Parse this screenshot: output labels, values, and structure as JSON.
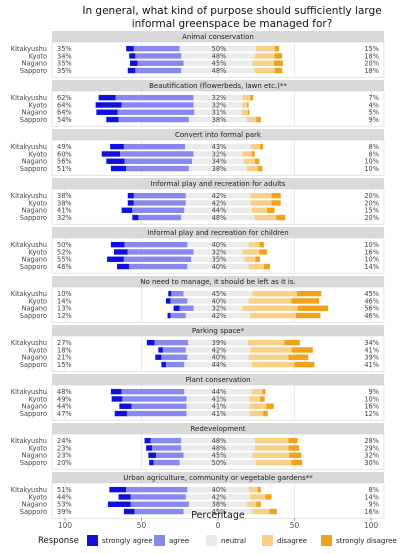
{
  "chart_data": {
    "type": "bar",
    "subtype": "diverging-stacked-likert",
    "title": "In general, what kind of purpose should sufficiently large informal greenspace be managed for?",
    "title_lines": [
      "In general, what kind of purpose should sufficiently large",
      "informal greenspace be managed for?"
    ],
    "xlabel": "Percentage",
    "x_ticks": [
      "100",
      "50",
      "0",
      "50",
      "100"
    ],
    "xlim": [
      -100,
      100
    ],
    "grid": true,
    "legend_position": "bottom",
    "legend": {
      "title": "Response",
      "items": [
        "strongly agree",
        "agree",
        "neutral",
        "disagree",
        "strongly disagree"
      ]
    },
    "colors": {
      "strongly_agree": "#1010dd",
      "agree": "#8888ee",
      "neutral": "#ebebeb",
      "disagree": "#f8d088",
      "strongly_disagree": "#f2a21a",
      "strip_background": "#d9d9d9",
      "panel_background": "#ffffff",
      "grid": "#dddddd"
    },
    "cities": [
      "Kitakyushu",
      "Kyoto",
      "Nagano",
      "Sapporo"
    ],
    "panels": [
      {
        "label": "Animal conservation",
        "rows": [
          {
            "city": "Kitakyushu",
            "agree_total": "35%",
            "neutral": "50%",
            "disagree_total": "15%",
            "values": [
              5,
              30,
              50,
              12,
              3
            ]
          },
          {
            "city": "Kyoto",
            "agree_total": "34%",
            "neutral": "48%",
            "disagree_total": "18%",
            "values": [
              4,
              30,
              48,
              13,
              5
            ]
          },
          {
            "city": "Nagano",
            "agree_total": "35%",
            "neutral": "45%",
            "disagree_total": "20%",
            "values": [
              5,
              30,
              45,
              14,
              6
            ]
          },
          {
            "city": "Sapporo",
            "agree_total": "35%",
            "neutral": "48%",
            "disagree_total": "18%",
            "values": [
              5,
              30,
              48,
              13,
              5
            ]
          }
        ]
      },
      {
        "label": "Beautification (flowerbeds, lawn etc.)**",
        "rows": [
          {
            "city": "Kitakyushu",
            "agree_total": "62%",
            "neutral": "32%",
            "disagree_total": "7%",
            "values": [
              11,
              51,
              32,
              5,
              2
            ]
          },
          {
            "city": "Kyoto",
            "agree_total": "64%",
            "neutral": "32%",
            "disagree_total": "4%",
            "values": [
              17,
              47,
              32,
              3,
              1
            ]
          },
          {
            "city": "Nagano",
            "agree_total": "64%",
            "neutral": "31%",
            "disagree_total": "5%",
            "values": [
              14,
              50,
              31,
              4,
              1
            ]
          },
          {
            "city": "Sapporo",
            "agree_total": "54%",
            "neutral": "38%",
            "disagree_total": "9%",
            "values": [
              8,
              46,
              38,
              6,
              3
            ]
          }
        ]
      },
      {
        "label": "Convert into formal park",
        "rows": [
          {
            "city": "Kitakyushu",
            "agree_total": "49%",
            "neutral": "43%",
            "disagree_total": "8%",
            "values": [
              9,
              40,
              43,
              6,
              2
            ]
          },
          {
            "city": "Kyoto",
            "agree_total": "60%",
            "neutral": "32%",
            "disagree_total": "8%",
            "values": [
              12,
              48,
              32,
              6,
              2
            ]
          },
          {
            "city": "Nagano",
            "agree_total": "56%",
            "neutral": "34%",
            "disagree_total": "10%",
            "values": [
              12,
              44,
              34,
              7,
              3
            ]
          },
          {
            "city": "Sapporo",
            "agree_total": "51%",
            "neutral": "38%",
            "disagree_total": "10%",
            "values": [
              10,
              41,
              38,
              7,
              3
            ]
          }
        ]
      },
      {
        "label": "Informal play and recreation for adults",
        "rows": [
          {
            "city": "Kitakyushu",
            "agree_total": "38%",
            "neutral": "42%",
            "disagree_total": "20%",
            "values": [
              4,
              34,
              42,
              14,
              6
            ]
          },
          {
            "city": "Kyoto",
            "agree_total": "38%",
            "neutral": "42%",
            "disagree_total": "20%",
            "values": [
              4,
              34,
              42,
              14,
              6
            ]
          },
          {
            "city": "Nagano",
            "agree_total": "41%",
            "neutral": "44%",
            "disagree_total": "15%",
            "values": [
              7,
              34,
              44,
              10,
              5
            ]
          },
          {
            "city": "Sapporo",
            "agree_total": "32%",
            "neutral": "48%",
            "disagree_total": "20%",
            "values": [
              4,
              28,
              48,
              14,
              6
            ]
          }
        ]
      },
      {
        "label": "Informal play and recreation for children",
        "rows": [
          {
            "city": "Kitakyushu",
            "agree_total": "50%",
            "neutral": "40%",
            "disagree_total": "10%",
            "values": [
              9,
              41,
              40,
              7,
              3
            ]
          },
          {
            "city": "Kyoto",
            "agree_total": "52%",
            "neutral": "32%",
            "disagree_total": "16%",
            "values": [
              9,
              43,
              32,
              11,
              5
            ]
          },
          {
            "city": "Nagano",
            "agree_total": "55%",
            "neutral": "35%",
            "disagree_total": "10%",
            "values": [
              11,
              44,
              35,
              7,
              3
            ]
          },
          {
            "city": "Sapporo",
            "agree_total": "46%",
            "neutral": "40%",
            "disagree_total": "14%",
            "values": [
              8,
              38,
              40,
              10,
              4
            ]
          }
        ]
      },
      {
        "label": "No need to manage, it should be left as it is.",
        "rows": [
          {
            "city": "Kitakyushu",
            "agree_total": "10%",
            "neutral": "45%",
            "disagree_total": "45%",
            "values": [
              2,
              8,
              45,
              29,
              16
            ]
          },
          {
            "city": "Kyoto",
            "agree_total": "14%",
            "neutral": "40%",
            "disagree_total": "46%",
            "values": [
              3,
              11,
              40,
              28,
              18
            ]
          },
          {
            "city": "Nagano",
            "agree_total": "13%",
            "neutral": "32%",
            "disagree_total": "56%",
            "values": [
              4,
              9,
              32,
              36,
              20
            ]
          },
          {
            "city": "Sapporo",
            "agree_total": "12%",
            "neutral": "42%",
            "disagree_total": "46%",
            "values": [
              2,
              10,
              42,
              30,
              16
            ]
          }
        ]
      },
      {
        "label": "Parking space*",
        "rows": [
          {
            "city": "Kitakyushu",
            "agree_total": "27%",
            "neutral": "39%",
            "disagree_total": "34%",
            "values": [
              5,
              22,
              39,
              24,
              10
            ]
          },
          {
            "city": "Kyoto",
            "agree_total": "18%",
            "neutral": "42%",
            "disagree_total": "41%",
            "values": [
              3,
              15,
              42,
              27,
              14
            ]
          },
          {
            "city": "Nagano",
            "agree_total": "21%",
            "neutral": "40%",
            "disagree_total": "39%",
            "values": [
              4,
              17,
              40,
              26,
              13
            ]
          },
          {
            "city": "Sapporo",
            "agree_total": "15%",
            "neutral": "44%",
            "disagree_total": "41%",
            "values": [
              3,
              12,
              44,
              28,
              13
            ]
          }
        ]
      },
      {
        "label": "Plant conservation",
        "rows": [
          {
            "city": "Kitakyushu",
            "agree_total": "48%",
            "neutral": "44%",
            "disagree_total": "9%",
            "values": [
              7,
              41,
              44,
              7,
              2
            ]
          },
          {
            "city": "Kyoto",
            "agree_total": "49%",
            "neutral": "41%",
            "disagree_total": "10%",
            "values": [
              7,
              42,
              41,
              7,
              3
            ]
          },
          {
            "city": "Nagano",
            "agree_total": "44%",
            "neutral": "41%",
            "disagree_total": "16%",
            "values": [
              8,
              36,
              41,
              11,
              5
            ]
          },
          {
            "city": "Sapporo",
            "agree_total": "47%",
            "neutral": "41%",
            "disagree_total": "12%",
            "values": [
              8,
              39,
              41,
              9,
              3
            ]
          }
        ]
      },
      {
        "label": "Redevelopment",
        "rows": [
          {
            "city": "Kitakyushu",
            "agree_total": "24%",
            "neutral": "48%",
            "disagree_total": "28%",
            "values": [
              4,
              20,
              48,
              22,
              6
            ]
          },
          {
            "city": "Kyoto",
            "agree_total": "23%",
            "neutral": "48%",
            "disagree_total": "29%",
            "values": [
              4,
              19,
              48,
              22,
              7
            ]
          },
          {
            "city": "Nagano",
            "agree_total": "23%",
            "neutral": "45%",
            "disagree_total": "32%",
            "values": [
              5,
              18,
              45,
              24,
              8
            ]
          },
          {
            "city": "Sapporo",
            "agree_total": "20%",
            "neutral": "50%",
            "disagree_total": "30%",
            "values": [
              3,
              17,
              50,
              23,
              7
            ]
          }
        ]
      },
      {
        "label": "Urban agriculture, community or vegetable gardens**",
        "rows": [
          {
            "city": "Kitakyushu",
            "agree_total": "51%",
            "neutral": "40%",
            "disagree_total": "8%",
            "values": [
              11,
              40,
              40,
              6,
              2
            ]
          },
          {
            "city": "Kyoto",
            "agree_total": "44%",
            "neutral": "42%",
            "disagree_total": "14%",
            "values": [
              8,
              36,
              42,
              10,
              4
            ]
          },
          {
            "city": "Nagano",
            "agree_total": "53%",
            "neutral": "38%",
            "disagree_total": "9%",
            "values": [
              15,
              38,
              38,
              6,
              3
            ]
          },
          {
            "city": "Sapporo",
            "agree_total": "39%",
            "neutral": "45%",
            "disagree_total": "16%",
            "values": [
              7,
              32,
              45,
              11,
              5
            ]
          }
        ]
      }
    ]
  }
}
